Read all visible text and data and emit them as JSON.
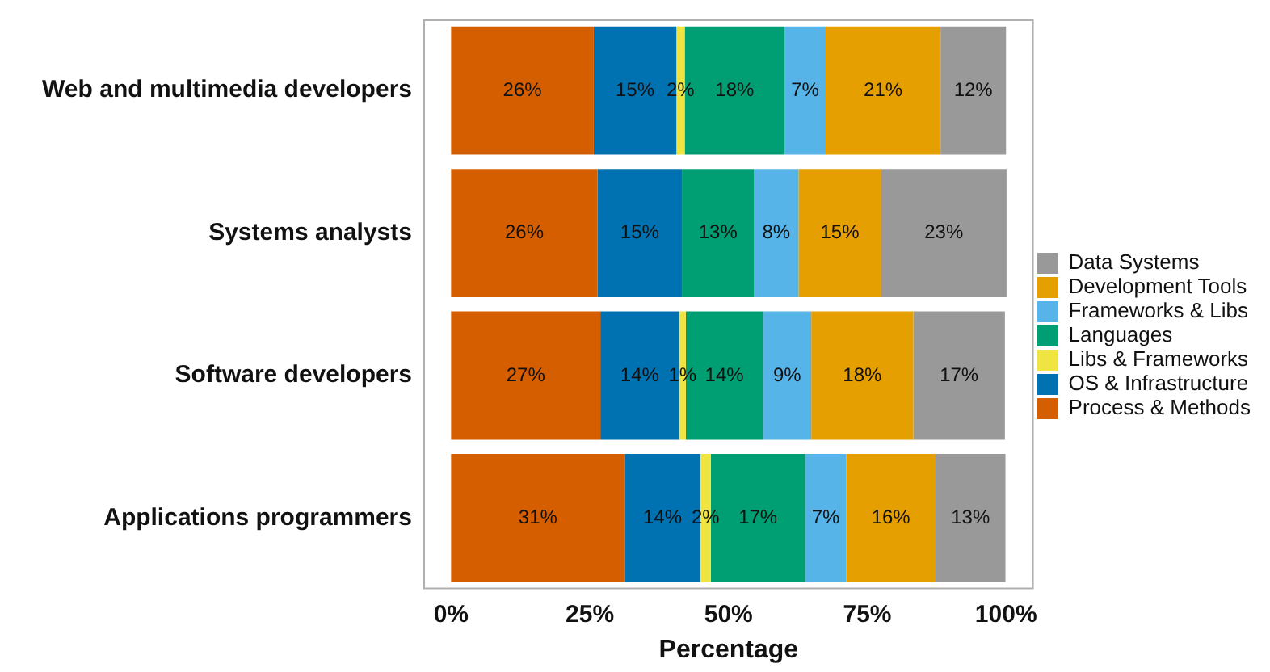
{
  "chart_data": {
    "type": "bar",
    "orientation": "horizontal",
    "stacked": true,
    "xlabel": "Percentage",
    "categories": [
      "Web and multimedia developers",
      "Systems analysts",
      "Software developers",
      "Applications programmers"
    ],
    "xlim": [
      -5,
      105
    ],
    "xticks": [
      {
        "value": 0,
        "label": "0%"
      },
      {
        "value": 25,
        "label": "25%"
      },
      {
        "value": 50,
        "label": "50%"
      },
      {
        "value": 75,
        "label": "75%"
      },
      {
        "value": 100,
        "label": "100%"
      }
    ],
    "grid": false,
    "legend": "right",
    "series": [
      {
        "name": "Process & Methods",
        "color": "#d55e00",
        "values": [
          25.7,
          26.4,
          26.9,
          31.3
        ],
        "value_labels": [
          "26%",
          "26%",
          "27%",
          "31%"
        ]
      },
      {
        "name": "OS & Infrastructure",
        "color": "#0072b2",
        "values": [
          14.9,
          15.2,
          14.2,
          13.6
        ],
        "value_labels": [
          "15%",
          "15%",
          "14%",
          "14%"
        ]
      },
      {
        "name": "Libs & Frameworks",
        "color": "#f0e442",
        "values": [
          1.5,
          null,
          1.2,
          1.9
        ],
        "value_labels": [
          "2%",
          null,
          "1%",
          "2%"
        ]
      },
      {
        "name": "Languages",
        "color": "#009e73",
        "values": [
          18.0,
          13.0,
          13.9,
          17.0
        ],
        "value_labels": [
          "18%",
          "13%",
          "14%",
          "17%"
        ]
      },
      {
        "name": "Frameworks & Libs",
        "color": "#56b4e9",
        "values": [
          7.4,
          8.0,
          8.7,
          7.4
        ],
        "value_labels": [
          "7%",
          "8%",
          "9%",
          "7%"
        ]
      },
      {
        "name": "Development Tools",
        "color": "#e69f00",
        "values": [
          20.7,
          14.9,
          18.4,
          16.1
        ],
        "value_labels": [
          "21%",
          "15%",
          "18%",
          "16%"
        ]
      },
      {
        "name": "Data Systems",
        "color": "#999999",
        "values": [
          11.8,
          22.6,
          16.5,
          12.6
        ],
        "value_labels": [
          "12%",
          "23%",
          "17%",
          "13%"
        ]
      }
    ]
  }
}
